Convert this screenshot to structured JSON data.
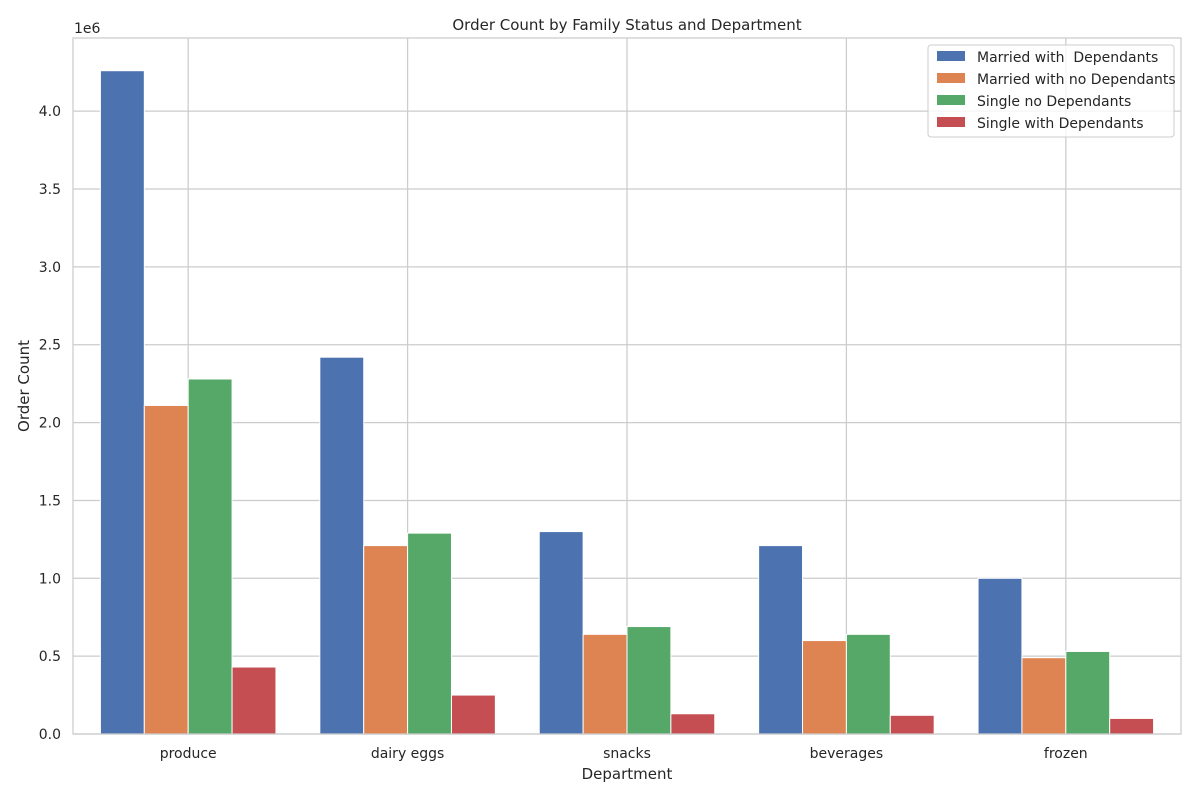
{
  "chart_data": {
    "type": "bar",
    "title": "Order Count by Family Status and Department",
    "xlabel": "Department",
    "ylabel": "Order Count",
    "y_scale_label": "1e6",
    "categories": [
      "produce",
      "dairy eggs",
      "snacks",
      "beverages",
      "frozen"
    ],
    "series": [
      {
        "name": "Married with  Dependants",
        "color": "#4c72b0",
        "values": [
          4.26,
          2.42,
          1.3,
          1.21,
          1.0
        ]
      },
      {
        "name": "Married with no Dependants",
        "color": "#dd8452",
        "values": [
          2.11,
          1.21,
          0.64,
          0.6,
          0.49
        ]
      },
      {
        "name": "Single no Dependants",
        "color": "#55a868",
        "values": [
          2.28,
          1.29,
          0.69,
          0.64,
          0.53
        ]
      },
      {
        "name": "Single with Dependants",
        "color": "#c44e52",
        "values": [
          0.43,
          0.25,
          0.13,
          0.12,
          0.1
        ]
      }
    ],
    "yticks": [
      "0.0",
      "0.5",
      "1.0",
      "1.5",
      "2.0",
      "2.5",
      "3.0",
      "3.5",
      "4.0"
    ],
    "ylim": [
      0,
      4.47
    ],
    "grid": true,
    "legend_position": "top-right"
  }
}
